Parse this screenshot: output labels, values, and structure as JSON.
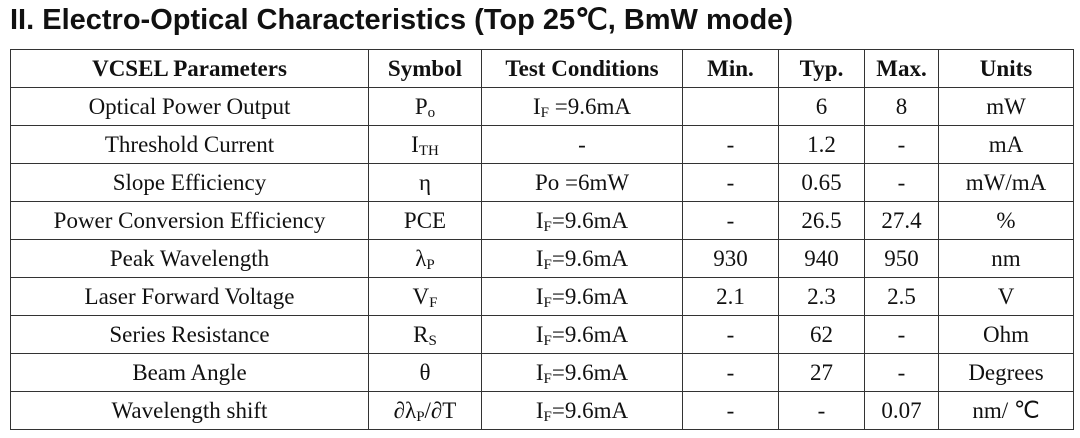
{
  "title": "II. Electro-Optical Characteristics (Top 25℃, BmW mode)",
  "table": {
    "header": [
      "VCSEL Parameters",
      "Symbol",
      "Test Conditions",
      "Min.",
      "Typ.",
      "Max.",
      "Units"
    ],
    "rows": [
      [
        "Optical Power Output",
        [
          {
            "text": "P"
          },
          {
            "text": "o",
            "sub": true
          }
        ],
        [
          {
            "text": "I"
          },
          {
            "text": "F",
            "sub": true
          },
          {
            "text": " =9.6mA"
          }
        ],
        null,
        "6",
        "8",
        "mW"
      ],
      [
        "Threshold Current",
        [
          {
            "text": "I"
          },
          {
            "text": "TH",
            "sub": true
          }
        ],
        "-",
        "-",
        "1.2",
        "-",
        "mA"
      ],
      [
        "Slope Efficiency",
        "η",
        "Po =6mW",
        "-",
        "0.65",
        "-",
        "mW/mA"
      ],
      [
        "Power Conversion Efficiency",
        "PCE",
        [
          {
            "text": "I"
          },
          {
            "text": "F",
            "sub": true
          },
          {
            "text": "=9.6mA"
          }
        ],
        "-",
        "26.5",
        "27.4",
        "%"
      ],
      [
        "Peak Wavelength",
        [
          {
            "text": "λ"
          },
          {
            "text": "P",
            "sub": true
          }
        ],
        [
          {
            "text": "I"
          },
          {
            "text": "F",
            "sub": true
          },
          {
            "text": "=9.6mA"
          }
        ],
        "930",
        "940",
        "950",
        "nm"
      ],
      [
        "Laser Forward Voltage",
        [
          {
            "text": "V"
          },
          {
            "text": "F",
            "sub": true
          }
        ],
        [
          {
            "text": "I"
          },
          {
            "text": "F",
            "sub": true
          },
          {
            "text": "=9.6mA"
          }
        ],
        "2.1",
        "2.3",
        "2.5",
        "V"
      ],
      [
        "Series Resistance",
        [
          {
            "text": "R"
          },
          {
            "text": "S",
            "sub": true
          }
        ],
        [
          {
            "text": "I"
          },
          {
            "text": "F",
            "sub": true
          },
          {
            "text": "=9.6mA"
          }
        ],
        "-",
        "62",
        "-",
        "Ohm"
      ],
      [
        "Beam Angle",
        "θ",
        [
          {
            "text": "I"
          },
          {
            "text": "F",
            "sub": true
          },
          {
            "text": "=9.6mA"
          }
        ],
        "-",
        "27",
        "-",
        "Degrees"
      ],
      [
        "Wavelength shift",
        [
          {
            "text": "∂λ"
          },
          {
            "text": "P",
            "sub": true
          },
          {
            "text": "/∂T"
          }
        ],
        [
          {
            "text": "I"
          },
          {
            "text": "F",
            "sub": true
          },
          {
            "text": "=9.6mA"
          }
        ],
        "-",
        "-",
        "0.07",
        "nm/ ℃"
      ]
    ]
  }
}
